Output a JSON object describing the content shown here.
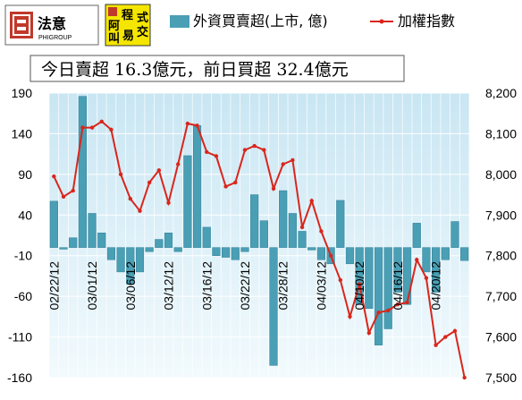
{
  "logos": {
    "logo1_text": "法意",
    "logo1_sub": "PHIGROUP",
    "logo2_chars": [
      "程",
      "式",
      "阿",
      "叫",
      "易",
      "交"
    ]
  },
  "colors": {
    "bar": "#4a9fb5",
    "bar_edge": "#2f7f96",
    "line": "#d9261c",
    "plot_bg_top": "#c9e6f3",
    "plot_bg_bottom": "#f2fafd",
    "subtitle_border": "#555555"
  },
  "chart_data": {
    "type": "bar",
    "title": "",
    "subtitle": "今日賣超 16.3億元，前日買超 32.4億元",
    "legend": [
      {
        "name": "外資買賣超(上市, 億)",
        "kind": "bar"
      },
      {
        "name": "加權指數",
        "kind": "line"
      }
    ],
    "legend_position": "top",
    "grid": true,
    "y_left": {
      "ticks": [
        190,
        140,
        90,
        40,
        -10,
        -60,
        -110,
        -160
      ],
      "lim": [
        -160,
        190
      ]
    },
    "y_right": {
      "ticks": [
        "8,200",
        "8,100",
        "8,000",
        "7,900",
        "7,800",
        "7,700",
        "7,600",
        "7,500"
      ],
      "lim": [
        7500,
        8200
      ]
    },
    "x_tick_labels": [
      {
        "label": "02/22/12",
        "index": 0
      },
      {
        "label": "03/01/12",
        "index": 4
      },
      {
        "label": "03/06/12",
        "index": 8
      },
      {
        "label": "03/12/12",
        "index": 12
      },
      {
        "label": "03/16/12",
        "index": 16
      },
      {
        "label": "03/22/12",
        "index": 20
      },
      {
        "label": "03/28/12",
        "index": 24
      },
      {
        "label": "04/03/12",
        "index": 28
      },
      {
        "label": "04/10/12",
        "index": 32
      },
      {
        "label": "04/16/12",
        "index": 36
      },
      {
        "label": "04/20/12",
        "index": 40
      }
    ],
    "series": [
      {
        "name": "外資買賣超(上市, 億)",
        "axis": "left",
        "values": [
          57,
          -2,
          12,
          186,
          42,
          18,
          -15,
          -30,
          -45,
          -30,
          -5,
          10,
          18,
          -5,
          113,
          150,
          25,
          -10,
          -12,
          -15,
          -5,
          65,
          33,
          -145,
          70,
          42,
          20,
          -3,
          -15,
          -20,
          58,
          -20,
          -70,
          -75,
          -120,
          -100,
          -55,
          -70,
          30,
          -30,
          -55,
          -15,
          32,
          -16
        ]
      },
      {
        "name": "加權指數",
        "axis": "right",
        "values": [
          7995,
          7945,
          7960,
          8115,
          8115,
          8130,
          8110,
          8000,
          7940,
          7910,
          7980,
          8010,
          7930,
          8025,
          8125,
          8120,
          8055,
          8045,
          7970,
          7980,
          8060,
          8070,
          8060,
          7965,
          8025,
          8035,
          7870,
          7935,
          7860,
          7800,
          7740,
          7650,
          7730,
          7610,
          7660,
          7665,
          7680,
          7685,
          7790,
          7745,
          7580,
          7600,
          7615,
          7500
        ]
      }
    ]
  }
}
